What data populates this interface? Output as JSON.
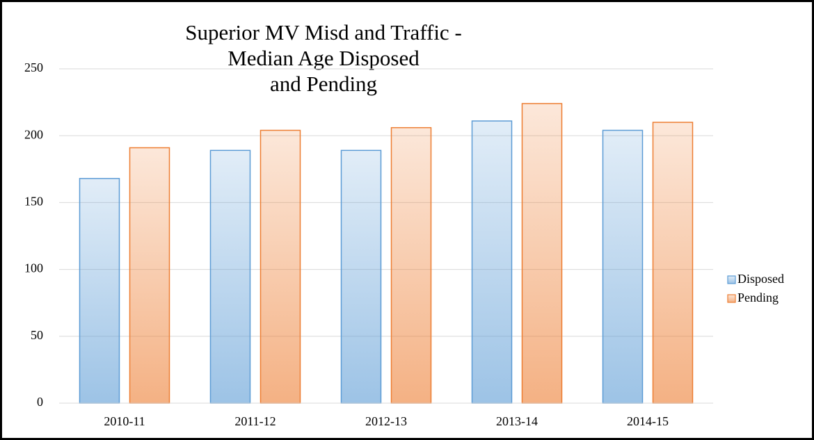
{
  "chart_data": {
    "type": "bar",
    "title": [
      "Superior MV Misd and Traffic -",
      "Median Age Disposed",
      "and Pending"
    ],
    "categories": [
      "2010-11",
      "2011-12",
      "2012-13",
      "2013-14",
      "2014-15"
    ],
    "series": [
      {
        "name": "Disposed",
        "color": "#5b9bd5",
        "values": [
          168,
          189,
          189,
          211,
          204
        ]
      },
      {
        "name": "Pending",
        "color": "#ed7d31",
        "values": [
          191,
          204,
          206,
          224,
          210
        ]
      }
    ],
    "ylim": [
      0,
      250
    ],
    "yticks": [
      0,
      50,
      100,
      150,
      200,
      250
    ],
    "grid": true,
    "legend": "right"
  }
}
